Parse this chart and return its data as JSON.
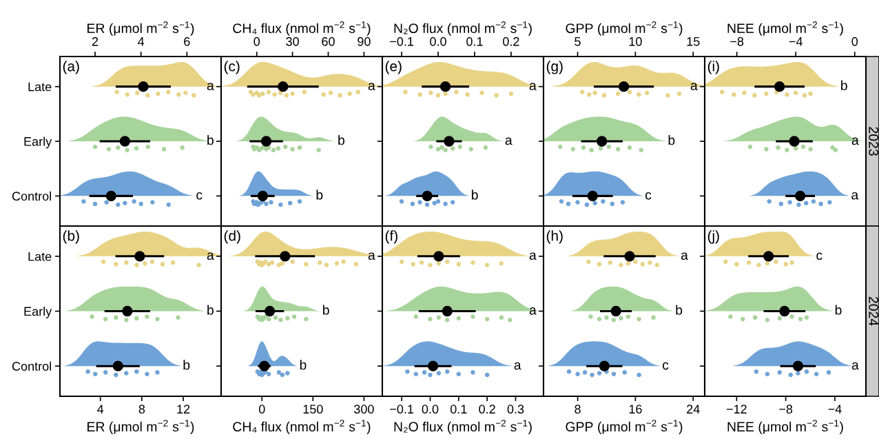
{
  "chart_data": [
    {
      "type": "scatter",
      "orientation": "horizontal",
      "categories": [
        "Late",
        "Early",
        "Control"
      ],
      "xlim": [
        0.47,
        7.49
      ],
      "xticks": [
        2,
        4,
        6
      ],
      "xlabel": "ER (μmol m$^{−2}$ s$^{−1}$)",
      "series": [
        {
          "color": "#e8d385",
          "x": [
            "Late",
            "Late",
            "Late",
            "Late",
            "Late",
            "Late",
            "Late",
            "Late",
            "Late"
          ],
          "values": [
            2.95,
            3.4,
            3.84,
            4.29,
            4.74,
            5.19,
            5.64,
            5.94,
            6.3
          ]
        },
        {
          "color": "#a7d49b",
          "x": [
            "Early",
            "Early",
            "Early",
            "Early",
            "Early",
            "Early",
            "Early",
            "Early"
          ],
          "values": [
            2.0,
            2.6,
            3.0,
            3.4,
            3.8,
            4.3,
            5.0,
            5.8
          ]
        },
        {
          "color": "#6fa3d8",
          "x": [
            "Control",
            "Control",
            "Control",
            "Control",
            "Control",
            "Control",
            "Control",
            "Control",
            "Control"
          ],
          "values": [
            1.5,
            2.0,
            2.5,
            3.0,
            3.3,
            3.7,
            4.0,
            4.5,
            5.2
          ]
        },
        {
          "color": "#000000",
          "marker": "circle",
          "values": [
            4.1,
            3.3,
            2.7
          ],
          "errors": [
            1.2,
            1.1,
            0.95
          ]
        }
      ],
      "annotations": [
        "(a)",
        "a",
        "b",
        "c"
      ]
    },
    {
      "type": "scatter",
      "orientation": "horizontal",
      "categories": [
        "Late",
        "Early",
        "Control"
      ],
      "xlim": [
        -29.9,
        105.4
      ],
      "xticks": [
        0,
        30,
        60,
        90
      ],
      "xlabel": "CH₄ flux (nmol m$^{−2}$ s$^{−1}$)",
      "tick_labels": "x",
      "series": [
        {
          "color": "#e8d385",
          "x": [
            "Late",
            "Late",
            "Late",
            "Late",
            "Late",
            "Late",
            "Late",
            "Late",
            "Late",
            "Late",
            "Late",
            "Late",
            "Late",
            "Late",
            "Late",
            "Late"
          ],
          "values": [
            -5,
            -3,
            0,
            2,
            5,
            10,
            15,
            20,
            25,
            30,
            40,
            56,
            62,
            70,
            78,
            85
          ]
        },
        {
          "color": "#a7d49b",
          "x": [
            "Early",
            "Early",
            "Early",
            "Early",
            "Early",
            "Early",
            "Early",
            "Early",
            "Early",
            "Early",
            "Early",
            "Early",
            "Early",
            "Early"
          ],
          "values": [
            -3,
            -2,
            0,
            2,
            4,
            6,
            8,
            10,
            14,
            18,
            24,
            30,
            36,
            52
          ]
        },
        {
          "color": "#6fa3d8",
          "x": [
            "Control",
            "Control",
            "Control",
            "Control",
            "Control",
            "Control",
            "Control",
            "Control",
            "Control",
            "Control",
            "Control"
          ],
          "values": [
            -3,
            -2,
            0,
            1,
            3,
            5,
            8,
            12,
            20,
            28,
            36
          ]
        },
        {
          "color": "#000000",
          "marker": "circle",
          "values": [
            22,
            8,
            5
          ],
          "errors": [
            30,
            14,
            10
          ]
        }
      ],
      "annotations": [
        "(c)",
        "a",
        "b",
        "b"
      ]
    },
    {
      "type": "scatter",
      "orientation": "horizontal",
      "categories": [
        "Late",
        "Early",
        "Control"
      ],
      "xlim": [
        -0.153,
        0.289
      ],
      "xticks": [
        {
          "value": -0.1,
          "label": "−0.1"
        },
        {
          "value": 0.0,
          "label": "0.0"
        },
        0.1,
        0.2
      ],
      "xlabel": "N₂O flux (nmol m$^{−2}$ s$^{−1}$)",
      "tick_labels": "x",
      "series": [
        {
          "color": "#e8d385",
          "x": [
            "Late",
            "Late",
            "Late",
            "Late",
            "Late",
            "Late",
            "Late",
            "Late",
            "Late",
            "Late"
          ],
          "values": [
            -0.09,
            -0.05,
            -0.02,
            0.0,
            0.02,
            0.05,
            0.08,
            0.12,
            0.16,
            0.2
          ]
        },
        {
          "color": "#a7d49b",
          "x": [
            "Early",
            "Early",
            "Early",
            "Early",
            "Early",
            "Early",
            "Early",
            "Early"
          ],
          "values": [
            -0.02,
            0.0,
            0.01,
            0.02,
            0.04,
            0.06,
            0.09,
            0.13
          ]
        },
        {
          "color": "#6fa3d8",
          "x": [
            "Control",
            "Control",
            "Control",
            "Control",
            "Control",
            "Control",
            "Control",
            "Control"
          ],
          "values": [
            -0.1,
            -0.07,
            -0.05,
            -0.03,
            -0.01,
            0.0,
            0.02,
            0.04
          ]
        },
        {
          "color": "#000000",
          "marker": "circle",
          "values": [
            0.02,
            0.03,
            -0.03
          ],
          "errors": [
            0.065,
            0.035,
            0.03
          ]
        }
      ],
      "annotations": [
        "(e)",
        "a",
        "a",
        "b"
      ]
    },
    {
      "type": "scatter",
      "orientation": "horizontal",
      "categories": [
        "Late",
        "Early",
        "Control"
      ],
      "xlim": [
        2.05,
        16.0
      ],
      "xticks": [
        5,
        10,
        15
      ],
      "xlabel": "GPP (μmol m$^{−2}$ s$^{−1}$)",
      "tick_labels": "x",
      "series": [
        {
          "color": "#e8d385",
          "x": [
            "Late",
            "Late",
            "Late",
            "Late",
            "Late",
            "Late",
            "Late",
            "Late",
            "Late",
            "Late"
          ],
          "values": [
            5.4,
            6.0,
            6.5,
            7.3,
            8.5,
            9.5,
            10.3,
            11.0,
            12.8,
            13.8
          ]
        },
        {
          "color": "#a7d49b",
          "x": [
            "Early",
            "Early",
            "Early",
            "Early",
            "Early",
            "Early",
            "Early",
            "Early",
            "Early"
          ],
          "values": [
            3.5,
            4.6,
            5.5,
            6.2,
            7.0,
            7.7,
            8.5,
            9.5,
            10.5
          ]
        },
        {
          "color": "#6fa3d8",
          "x": [
            "Control",
            "Control",
            "Control",
            "Control",
            "Control",
            "Control",
            "Control",
            "Control"
          ],
          "values": [
            3.6,
            4.2,
            5.0,
            5.8,
            6.5,
            7.2,
            8.0,
            8.9
          ]
        },
        {
          "color": "#000000",
          "marker": "circle",
          "values": [
            9.0,
            7.1,
            6.3
          ],
          "errors": [
            2.6,
            1.8,
            1.75
          ]
        }
      ],
      "annotations": [
        "(g)",
        "a",
        "b",
        "c"
      ]
    },
    {
      "type": "scatter",
      "orientation": "horizontal",
      "categories": [
        "Late",
        "Early",
        "Control"
      ],
      "xlim": [
        -10.18,
        0.76
      ],
      "xticks": [
        {
          "value": -8,
          "label": "−8"
        },
        {
          "value": -4,
          "label": "−4"
        },
        0
      ],
      "xlabel": "NEE (μmol m$^{−2}$ s$^{−1}$)",
      "tick_labels": "x",
      "series": [
        {
          "color": "#e8d385",
          "x": [
            "Late",
            "Late",
            "Late",
            "Late",
            "Late",
            "Late",
            "Late",
            "Late",
            "Late",
            "Late"
          ],
          "values": [
            -9.0,
            -8.2,
            -7.5,
            -6.8,
            -6.0,
            -5.3,
            -4.6,
            -4.0,
            -3.4,
            -3.0
          ]
        },
        {
          "color": "#a7d49b",
          "x": [
            "Early",
            "Early",
            "Early",
            "Early",
            "Early",
            "Early",
            "Early",
            "Early",
            "Early"
          ],
          "values": [
            -7.1,
            -6.0,
            -5.2,
            -4.6,
            -4.0,
            -3.5,
            -3.0,
            -1.5,
            -1.3
          ]
        },
        {
          "color": "#6fa3d8",
          "x": [
            "Control",
            "Control",
            "Control",
            "Control",
            "Control",
            "Control",
            "Control",
            "Control"
          ],
          "values": [
            -5.8,
            -5.0,
            -4.4,
            -3.8,
            -3.3,
            -2.8,
            -2.3,
            -1.7
          ]
        },
        {
          "color": "#000000",
          "marker": "circle",
          "values": [
            -5.1,
            -4.1,
            -3.7
          ],
          "errors": [
            1.7,
            1.25,
            1.0
          ]
        }
      ],
      "annotations": [
        "(i)",
        "b",
        "a",
        "a",
        "2023"
      ]
    },
    {
      "type": "scatter",
      "orientation": "horizontal",
      "categories": [
        "Late",
        "Early",
        "Control"
      ],
      "xlim": [
        0.1,
        15.65
      ],
      "xticks": [
        4,
        8,
        12
      ],
      "xlabel": "ER (μmol m$^{−2}$ s$^{−1}$)",
      "series": [
        {
          "color": "#e8d385",
          "x": [
            "Late",
            "Late",
            "Late",
            "Late",
            "Late",
            "Late",
            "Late",
            "Late",
            "Late"
          ],
          "values": [
            4.3,
            5.5,
            6.5,
            7.5,
            8.3,
            9.0,
            10.0,
            11.0,
            13.5
          ]
        },
        {
          "color": "#a7d49b",
          "x": [
            "Early",
            "Early",
            "Early",
            "Early",
            "Early",
            "Early",
            "Early",
            "Early"
          ],
          "values": [
            3.2,
            4.5,
            5.5,
            6.5,
            7.5,
            8.5,
            9.5,
            11.5
          ]
        },
        {
          "color": "#6fa3d8",
          "x": [
            "Control",
            "Control",
            "Control",
            "Control",
            "Control",
            "Control",
            "Control",
            "Control"
          ],
          "values": [
            2.8,
            3.5,
            4.5,
            5.5,
            6.5,
            7.5,
            8.5,
            9.5
          ]
        },
        {
          "color": "#000000",
          "marker": "circle",
          "values": [
            7.8,
            6.6,
            5.7
          ],
          "errors": [
            2.35,
            2.2,
            2.1
          ]
        }
      ],
      "annotations": [
        "(b)",
        "a",
        "b",
        "b"
      ]
    },
    {
      "type": "scatter",
      "orientation": "horizontal",
      "categories": [
        "Late",
        "Early",
        "Control"
      ],
      "xlim": [
        -120,
        354
      ],
      "xticks": [
        0,
        150,
        300
      ],
      "xlabel": "CH₄ flux (nmol m$^{−2}$ s$^{−1}$)",
      "tick_labels": "x",
      "series": [
        {
          "color": "#e8d385",
          "x": [
            "Late",
            "Late",
            "Late",
            "Late",
            "Late",
            "Late",
            "Late",
            "Late",
            "Late",
            "Late",
            "Late",
            "Late",
            "Late",
            "Late",
            "Late",
            "Late",
            "Late"
          ],
          "values": [
            -13,
            -8,
            -3,
            0,
            5,
            10,
            20,
            30,
            50,
            60,
            90,
            130,
            170,
            190,
            220,
            240,
            277
          ]
        },
        {
          "color": "#a7d49b",
          "x": [
            "Early",
            "Early",
            "Early",
            "Early",
            "Early",
            "Early",
            "Early",
            "Early",
            "Early",
            "Early",
            "Early",
            "Early"
          ],
          "values": [
            -13,
            -8,
            -3,
            0,
            5,
            10,
            20,
            40,
            55,
            75,
            95,
            130
          ]
        },
        {
          "color": "#6fa3d8",
          "x": [
            "Control",
            "Control",
            "Control",
            "Control",
            "Control",
            "Control",
            "Control",
            "Control",
            "Control",
            "Control"
          ],
          "values": [
            -13,
            -8,
            -3,
            0,
            5,
            10,
            20,
            50,
            60,
            75
          ]
        },
        {
          "color": "#000000",
          "marker": "circle",
          "values": [
            68,
            23,
            7
          ],
          "errors": [
            88,
            42,
            19
          ]
        }
      ],
      "annotations": [
        "(d)",
        "a",
        "b",
        "b"
      ]
    },
    {
      "type": "scatter",
      "orientation": "horizontal",
      "categories": [
        "Late",
        "Early",
        "Control"
      ],
      "xlim": [
        -0.168,
        0.398
      ],
      "xticks": [
        {
          "value": -0.1,
          "label": "−0.1"
        },
        {
          "value": 0.0,
          "label": "0.0"
        },
        0.1,
        0.2,
        0.3
      ],
      "xlabel": "N₂O flux (nmol m$^{−2}$ s$^{−1}$)",
      "tick_labels": "x",
      "series": [
        {
          "color": "#e8d385",
          "x": [
            "Late",
            "Late",
            "Late",
            "Late",
            "Late",
            "Late",
            "Late",
            "Late",
            "Late",
            "Late"
          ],
          "values": [
            -0.1,
            -0.06,
            -0.03,
            0.0,
            0.03,
            0.06,
            0.1,
            0.15,
            0.2,
            0.25
          ]
        },
        {
          "color": "#a7d49b",
          "x": [
            "Early",
            "Early",
            "Early",
            "Early",
            "Early",
            "Early",
            "Early",
            "Early",
            "Early"
          ],
          "values": [
            -0.05,
            0.0,
            0.03,
            0.06,
            0.1,
            0.15,
            0.2,
            0.25,
            0.28
          ]
        },
        {
          "color": "#6fa3d8",
          "x": [
            "Control",
            "Control",
            "Control",
            "Control",
            "Control",
            "Control",
            "Control",
            "Control",
            "Control"
          ],
          "values": [
            -0.08,
            -0.05,
            -0.02,
            0.0,
            0.03,
            0.06,
            0.1,
            0.15,
            0.2
          ]
        },
        {
          "color": "#000000",
          "marker": "circle",
          "values": [
            0.03,
            0.06,
            0.01
          ],
          "errors": [
            0.075,
            0.1,
            0.065
          ]
        }
      ],
      "annotations": [
        "(f)",
        "a",
        "a",
        "a"
      ]
    },
    {
      "type": "scatter",
      "orientation": "horizontal",
      "categories": [
        "Late",
        "Early",
        "Control"
      ],
      "xlim": [
        3.27,
        25.6
      ],
      "xticks": [
        8,
        16,
        24
      ],
      "xlabel": "GPP (μmol m$^{−2}$ s$^{−1}$)",
      "tick_labels": "x",
      "series": [
        {
          "color": "#e8d385",
          "x": [
            "Late",
            "Late",
            "Late",
            "Late",
            "Late",
            "Late",
            "Late",
            "Late",
            "Late"
          ],
          "values": [
            9.5,
            11,
            12.5,
            14,
            15,
            16,
            17,
            18,
            19
          ]
        },
        {
          "color": "#a7d49b",
          "x": [
            "Early",
            "Early",
            "Early",
            "Early",
            "Early",
            "Early",
            "Early",
            "Early"
          ],
          "values": [
            9.8,
            11,
            12,
            13,
            14,
            15,
            16.5,
            18.5
          ]
        },
        {
          "color": "#6fa3d8",
          "x": [
            "Control",
            "Control",
            "Control",
            "Control",
            "Control",
            "Control",
            "Control",
            "Control",
            "Control"
          ],
          "values": [
            6.8,
            8,
            9,
            10,
            11,
            12,
            13,
            14.5,
            16.5
          ]
        },
        {
          "color": "#000000",
          "marker": "circle",
          "values": [
            15.2,
            13.3,
            11.7
          ],
          "errors": [
            3.6,
            2.2,
            2.5
          ]
        }
      ],
      "annotations": [
        "(h)",
        "a",
        "b",
        "c"
      ]
    },
    {
      "type": "scatter",
      "orientation": "horizontal",
      "categories": [
        "Late",
        "Early",
        "Control"
      ],
      "xlim": [
        -14.6,
        -1.47
      ],
      "xticks": [
        {
          "value": -12,
          "label": "−12"
        },
        {
          "value": -8,
          "label": "−8"
        },
        {
          "value": -4,
          "label": "−4"
        }
      ],
      "xlabel": "NEE (μmol m$^{−2}$ s$^{−1}$)",
      "tick_labels": "x",
      "series": [
        {
          "color": "#e8d385",
          "x": [
            "Late",
            "Late",
            "Late",
            "Late",
            "Late",
            "Late",
            "Late",
            "Late"
          ],
          "values": [
            -12.9,
            -12,
            -11,
            -10.2,
            -9.5,
            -8.8,
            -8.0,
            -7.5
          ]
        },
        {
          "color": "#a7d49b",
          "x": [
            "Early",
            "Early",
            "Early",
            "Early",
            "Early",
            "Early",
            "Early",
            "Early"
          ],
          "values": [
            -12.5,
            -11.5,
            -10.5,
            -9.5,
            -8.5,
            -7.5,
            -6.8,
            -6.3
          ]
        },
        {
          "color": "#6fa3d8",
          "x": [
            "Control",
            "Control",
            "Control",
            "Control",
            "Control",
            "Control",
            "Control",
            "Control"
          ],
          "values": [
            -10.4,
            -9.5,
            -8.5,
            -7.6,
            -7.0,
            -6.3,
            -5.5,
            -4.5
          ]
        },
        {
          "color": "#000000",
          "marker": "circle",
          "values": [
            -9.4,
            -8.1,
            -7.0
          ],
          "errors": [
            1.65,
            1.7,
            1.45
          ]
        }
      ],
      "annotations": [
        "(j)",
        "c",
        "b",
        "a",
        "2024"
      ]
    }
  ]
}
